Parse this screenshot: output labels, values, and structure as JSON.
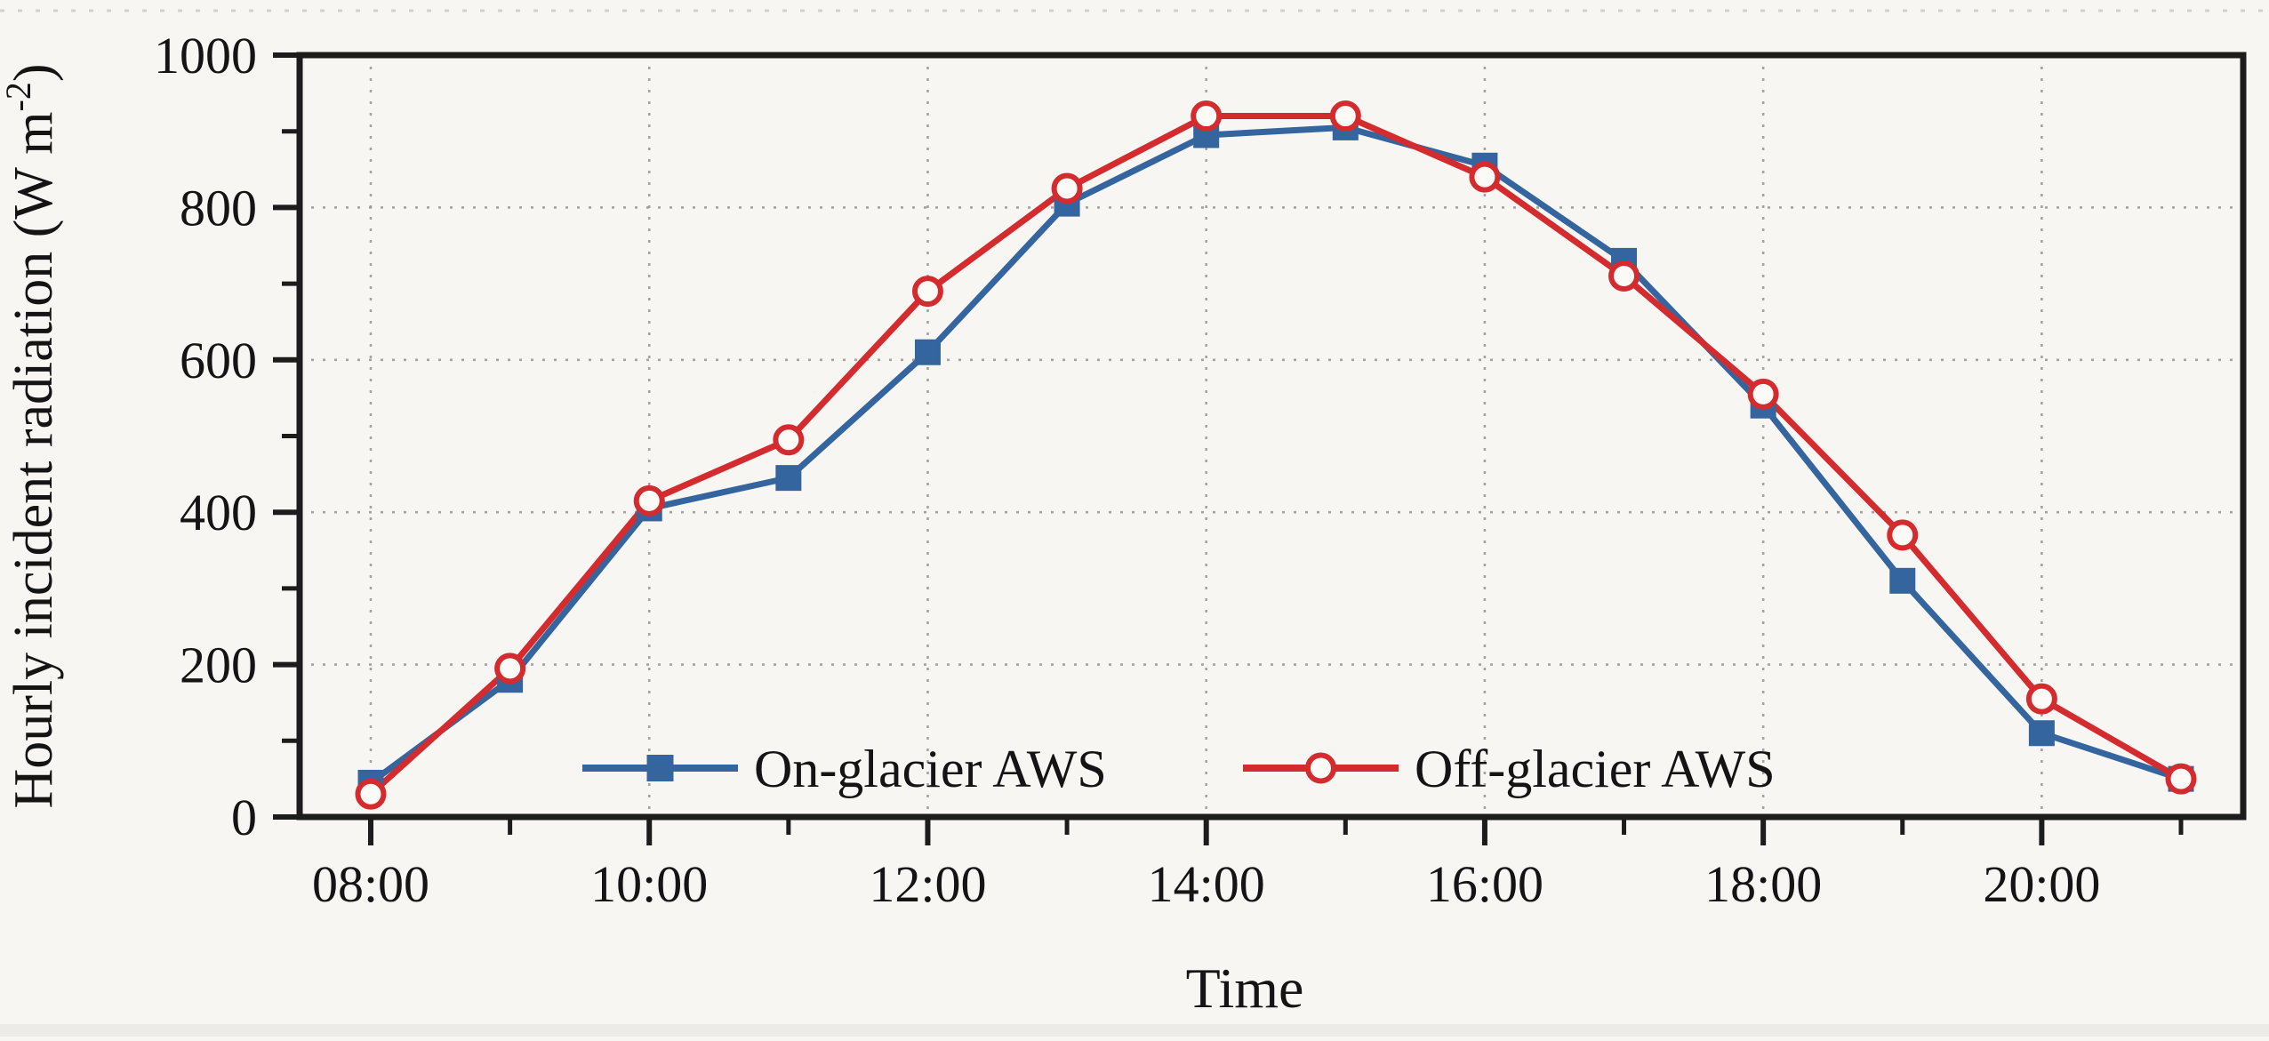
{
  "figure": {
    "background": "#f7f6f3"
  },
  "chart_data": {
    "type": "line",
    "title": "",
    "xlabel": "Time",
    "ylabel": {
      "text": "Hourly incident radiation (W m",
      "superscript": "-2",
      "close": ")"
    },
    "x_categories": [
      "08:00",
      "09:00",
      "10:00",
      "11:00",
      "12:00",
      "13:00",
      "14:00",
      "15:00",
      "16:00",
      "17:00",
      "18:00",
      "19:00",
      "20:00",
      "21:00"
    ],
    "x_tick_labels": [
      "08:00",
      "10:00",
      "12:00",
      "14:00",
      "16:00",
      "18:00",
      "20:00"
    ],
    "ylim": [
      0,
      1000
    ],
    "y_ticks": [
      0,
      200,
      400,
      600,
      800,
      1000
    ],
    "y_minor_ticks": [
      100,
      300,
      500,
      700,
      900
    ],
    "grid": {
      "style": "dotted",
      "horizontal_at": [
        200,
        400,
        600,
        800
      ],
      "vertical_at_labels": [
        "08:00",
        "10:00",
        "12:00",
        "14:00",
        "16:00",
        "18:00",
        "20:00"
      ]
    },
    "colors": {
      "on_glacier": "#34659e",
      "off_glacier": "#d42b2e",
      "marker_fill_open": "#fbfaf7",
      "grid": "#9b9b9b",
      "axis": "#1c1c1c",
      "text": "#141414"
    },
    "series": [
      {
        "name": "On-glacier AWS",
        "marker": "filled-square",
        "color_key": "on_glacier",
        "values": [
          45,
          180,
          405,
          445,
          610,
          805,
          895,
          905,
          855,
          730,
          540,
          310,
          110,
          50
        ]
      },
      {
        "name": "Off-glacier AWS",
        "marker": "open-circle",
        "color_key": "off_glacier",
        "values": [
          30,
          195,
          415,
          495,
          690,
          825,
          920,
          920,
          840,
          710,
          555,
          370,
          155,
          50
        ]
      }
    ],
    "legend": {
      "position": "bottom-center-inside",
      "items": [
        "On-glacier AWS",
        "Off-glacier AWS"
      ]
    }
  }
}
